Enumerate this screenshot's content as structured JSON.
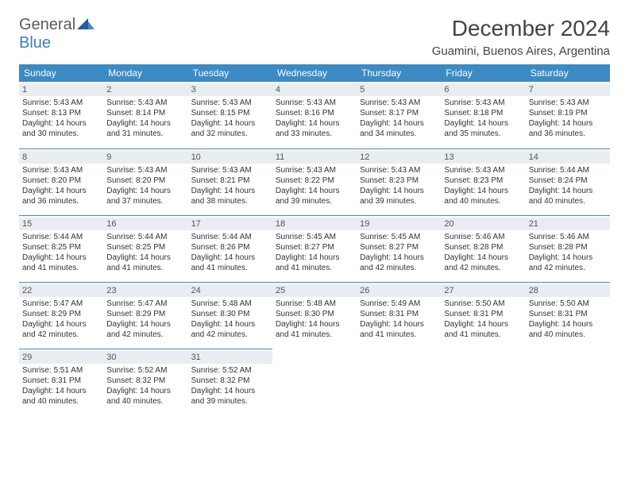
{
  "logo": {
    "word1": "General",
    "word2": "Blue",
    "word1_color": "#5a5a5a",
    "word2_color": "#3b7fc4"
  },
  "title": "December 2024",
  "location": "Guamini, Buenos Aires, Argentina",
  "header_bg": "#3b8ac4",
  "daynum_bg": "#e9edf1",
  "border_color": "#3b8ac4",
  "weekdays": [
    "Sunday",
    "Monday",
    "Tuesday",
    "Wednesday",
    "Thursday",
    "Friday",
    "Saturday"
  ],
  "weeks": [
    [
      {
        "n": "1",
        "sr": "Sunrise: 5:43 AM",
        "ss": "Sunset: 8:13 PM",
        "dl": "Daylight: 14 hours and 30 minutes."
      },
      {
        "n": "2",
        "sr": "Sunrise: 5:43 AM",
        "ss": "Sunset: 8:14 PM",
        "dl": "Daylight: 14 hours and 31 minutes."
      },
      {
        "n": "3",
        "sr": "Sunrise: 5:43 AM",
        "ss": "Sunset: 8:15 PM",
        "dl": "Daylight: 14 hours and 32 minutes."
      },
      {
        "n": "4",
        "sr": "Sunrise: 5:43 AM",
        "ss": "Sunset: 8:16 PM",
        "dl": "Daylight: 14 hours and 33 minutes."
      },
      {
        "n": "5",
        "sr": "Sunrise: 5:43 AM",
        "ss": "Sunset: 8:17 PM",
        "dl": "Daylight: 14 hours and 34 minutes."
      },
      {
        "n": "6",
        "sr": "Sunrise: 5:43 AM",
        "ss": "Sunset: 8:18 PM",
        "dl": "Daylight: 14 hours and 35 minutes."
      },
      {
        "n": "7",
        "sr": "Sunrise: 5:43 AM",
        "ss": "Sunset: 8:19 PM",
        "dl": "Daylight: 14 hours and 36 minutes."
      }
    ],
    [
      {
        "n": "8",
        "sr": "Sunrise: 5:43 AM",
        "ss": "Sunset: 8:20 PM",
        "dl": "Daylight: 14 hours and 36 minutes."
      },
      {
        "n": "9",
        "sr": "Sunrise: 5:43 AM",
        "ss": "Sunset: 8:20 PM",
        "dl": "Daylight: 14 hours and 37 minutes."
      },
      {
        "n": "10",
        "sr": "Sunrise: 5:43 AM",
        "ss": "Sunset: 8:21 PM",
        "dl": "Daylight: 14 hours and 38 minutes."
      },
      {
        "n": "11",
        "sr": "Sunrise: 5:43 AM",
        "ss": "Sunset: 8:22 PM",
        "dl": "Daylight: 14 hours and 39 minutes."
      },
      {
        "n": "12",
        "sr": "Sunrise: 5:43 AM",
        "ss": "Sunset: 8:23 PM",
        "dl": "Daylight: 14 hours and 39 minutes."
      },
      {
        "n": "13",
        "sr": "Sunrise: 5:43 AM",
        "ss": "Sunset: 8:23 PM",
        "dl": "Daylight: 14 hours and 40 minutes."
      },
      {
        "n": "14",
        "sr": "Sunrise: 5:44 AM",
        "ss": "Sunset: 8:24 PM",
        "dl": "Daylight: 14 hours and 40 minutes."
      }
    ],
    [
      {
        "n": "15",
        "sr": "Sunrise: 5:44 AM",
        "ss": "Sunset: 8:25 PM",
        "dl": "Daylight: 14 hours and 41 minutes."
      },
      {
        "n": "16",
        "sr": "Sunrise: 5:44 AM",
        "ss": "Sunset: 8:25 PM",
        "dl": "Daylight: 14 hours and 41 minutes."
      },
      {
        "n": "17",
        "sr": "Sunrise: 5:44 AM",
        "ss": "Sunset: 8:26 PM",
        "dl": "Daylight: 14 hours and 41 minutes."
      },
      {
        "n": "18",
        "sr": "Sunrise: 5:45 AM",
        "ss": "Sunset: 8:27 PM",
        "dl": "Daylight: 14 hours and 41 minutes."
      },
      {
        "n": "19",
        "sr": "Sunrise: 5:45 AM",
        "ss": "Sunset: 8:27 PM",
        "dl": "Daylight: 14 hours and 42 minutes."
      },
      {
        "n": "20",
        "sr": "Sunrise: 5:46 AM",
        "ss": "Sunset: 8:28 PM",
        "dl": "Daylight: 14 hours and 42 minutes."
      },
      {
        "n": "21",
        "sr": "Sunrise: 5:46 AM",
        "ss": "Sunset: 8:28 PM",
        "dl": "Daylight: 14 hours and 42 minutes."
      }
    ],
    [
      {
        "n": "22",
        "sr": "Sunrise: 5:47 AM",
        "ss": "Sunset: 8:29 PM",
        "dl": "Daylight: 14 hours and 42 minutes."
      },
      {
        "n": "23",
        "sr": "Sunrise: 5:47 AM",
        "ss": "Sunset: 8:29 PM",
        "dl": "Daylight: 14 hours and 42 minutes."
      },
      {
        "n": "24",
        "sr": "Sunrise: 5:48 AM",
        "ss": "Sunset: 8:30 PM",
        "dl": "Daylight: 14 hours and 42 minutes."
      },
      {
        "n": "25",
        "sr": "Sunrise: 5:48 AM",
        "ss": "Sunset: 8:30 PM",
        "dl": "Daylight: 14 hours and 41 minutes."
      },
      {
        "n": "26",
        "sr": "Sunrise: 5:49 AM",
        "ss": "Sunset: 8:31 PM",
        "dl": "Daylight: 14 hours and 41 minutes."
      },
      {
        "n": "27",
        "sr": "Sunrise: 5:50 AM",
        "ss": "Sunset: 8:31 PM",
        "dl": "Daylight: 14 hours and 41 minutes."
      },
      {
        "n": "28",
        "sr": "Sunrise: 5:50 AM",
        "ss": "Sunset: 8:31 PM",
        "dl": "Daylight: 14 hours and 40 minutes."
      }
    ],
    [
      {
        "n": "29",
        "sr": "Sunrise: 5:51 AM",
        "ss": "Sunset: 8:31 PM",
        "dl": "Daylight: 14 hours and 40 minutes."
      },
      {
        "n": "30",
        "sr": "Sunrise: 5:52 AM",
        "ss": "Sunset: 8:32 PM",
        "dl": "Daylight: 14 hours and 40 minutes."
      },
      {
        "n": "31",
        "sr": "Sunrise: 5:52 AM",
        "ss": "Sunset: 8:32 PM",
        "dl": "Daylight: 14 hours and 39 minutes."
      },
      null,
      null,
      null,
      null
    ]
  ]
}
